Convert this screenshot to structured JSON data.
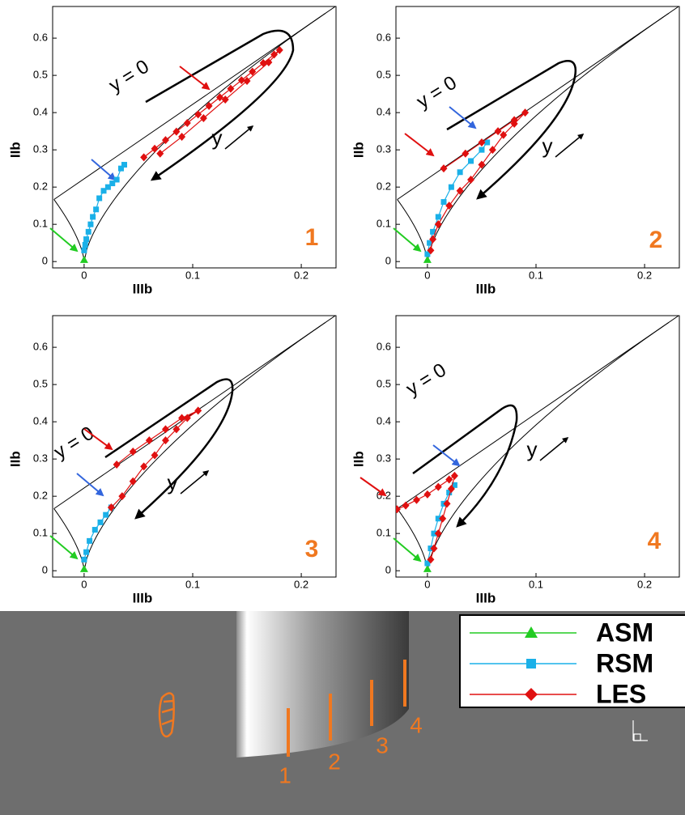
{
  "chart_data": [
    {
      "type": "scatter",
      "x_label": "IIIb",
      "y_label": "IIb",
      "label": "1",
      "annotations": [
        "y = 0",
        "y"
      ],
      "xlim": [
        -0.029,
        0.232
      ],
      "ylim": [
        -0.017,
        0.685
      ],
      "xticks": [
        0,
        0.1,
        0.2
      ],
      "yticks": [
        0,
        0.1,
        0.2,
        0.3,
        0.4,
        0.5,
        0.6
      ],
      "series": [
        {
          "name": "ASM",
          "color": "#22cc22",
          "marker": "triangle",
          "x": [
            0
          ],
          "values": [
            0.005
          ]
        },
        {
          "name": "RSM",
          "color": "#1ab0e8",
          "marker": "square",
          "x": [
            0,
            0.001,
            0.002,
            0.004,
            0.006,
            0.008,
            0.011,
            0.014,
            0.018,
            0.022,
            0.026,
            0.03,
            0.034,
            0.037
          ],
          "values": [
            0.03,
            0.045,
            0.06,
            0.08,
            0.1,
            0.12,
            0.14,
            0.17,
            0.19,
            0.2,
            0.21,
            0.22,
            0.25,
            0.26
          ]
        },
        {
          "name": "LES",
          "color": "#e01010",
          "marker": "diamond",
          "x": [
            0.055,
            0.065,
            0.075,
            0.085,
            0.095,
            0.105,
            0.115,
            0.125,
            0.135,
            0.145,
            0.155,
            0.165,
            0.175,
            0.18,
            0.17,
            0.15,
            0.13,
            0.11,
            0.09,
            0.07
          ],
          "values": [
            0.28,
            0.303,
            0.326,
            0.349,
            0.372,
            0.395,
            0.418,
            0.441,
            0.464,
            0.487,
            0.51,
            0.533,
            0.556,
            0.568,
            0.535,
            0.485,
            0.435,
            0.385,
            0.335,
            0.29
          ]
        }
      ]
    },
    {
      "type": "scatter",
      "x_label": "IIIb",
      "y_label": "IIb",
      "label": "2",
      "annotations": [
        "y = 0",
        "y"
      ],
      "xlim": [
        -0.029,
        0.232
      ],
      "ylim": [
        -0.017,
        0.685
      ],
      "xticks": [
        0,
        0.1,
        0.2
      ],
      "yticks": [
        0,
        0.1,
        0.2,
        0.3,
        0.4,
        0.5,
        0.6
      ],
      "series": [
        {
          "name": "ASM",
          "color": "#22cc22",
          "marker": "triangle",
          "x": [
            0
          ],
          "values": [
            0.005
          ]
        },
        {
          "name": "RSM",
          "color": "#1ab0e8",
          "marker": "square",
          "x": [
            0,
            0.002,
            0.005,
            0.01,
            0.015,
            0.022,
            0.03,
            0.04,
            0.05,
            0.055
          ],
          "values": [
            0.02,
            0.05,
            0.08,
            0.12,
            0.16,
            0.2,
            0.24,
            0.27,
            0.3,
            0.32
          ]
        },
        {
          "name": "LES",
          "color": "#e01010",
          "marker": "diamond",
          "x": [
            0.003,
            0.005,
            0.01,
            0.02,
            0.03,
            0.04,
            0.05,
            0.06,
            0.07,
            0.08,
            0.09,
            0.08,
            0.065,
            0.05,
            0.035,
            0.015
          ],
          "values": [
            0.03,
            0.06,
            0.1,
            0.15,
            0.19,
            0.22,
            0.26,
            0.3,
            0.34,
            0.37,
            0.4,
            0.38,
            0.35,
            0.32,
            0.29,
            0.25
          ]
        }
      ]
    },
    {
      "type": "scatter",
      "x_label": "IIIb",
      "y_label": "IIb",
      "label": "3",
      "annotations": [
        "y = 0",
        "y"
      ],
      "xlim": [
        -0.029,
        0.232
      ],
      "ylim": [
        -0.017,
        0.685
      ],
      "xticks": [
        0,
        0.1,
        0.2
      ],
      "yticks": [
        0,
        0.1,
        0.2,
        0.3,
        0.4,
        0.5,
        0.6
      ],
      "series": [
        {
          "name": "ASM",
          "color": "#22cc22",
          "marker": "triangle",
          "x": [
            0
          ],
          "values": [
            0.005
          ]
        },
        {
          "name": "RSM",
          "color": "#1ab0e8",
          "marker": "square",
          "x": [
            0,
            0.002,
            0.005,
            0.01,
            0.015,
            0.02,
            0.025
          ],
          "values": [
            0.03,
            0.05,
            0.08,
            0.11,
            0.13,
            0.15,
            0.17
          ]
        },
        {
          "name": "LES",
          "color": "#e01010",
          "marker": "diamond",
          "x": [
            0.025,
            0.035,
            0.045,
            0.055,
            0.065,
            0.075,
            0.085,
            0.095,
            0.105,
            0.09,
            0.075,
            0.06,
            0.045,
            0.03
          ],
          "values": [
            0.17,
            0.2,
            0.24,
            0.28,
            0.31,
            0.35,
            0.38,
            0.41,
            0.43,
            0.41,
            0.38,
            0.35,
            0.32,
            0.285
          ]
        }
      ]
    },
    {
      "type": "scatter",
      "x_label": "IIIb",
      "y_label": "IIb",
      "label": "4",
      "annotations": [
        "y = 0",
        "y"
      ],
      "xlim": [
        -0.029,
        0.232
      ],
      "ylim": [
        -0.017,
        0.685
      ],
      "xticks": [
        0,
        0.1,
        0.2
      ],
      "yticks": [
        0,
        0.1,
        0.2,
        0.3,
        0.4,
        0.5,
        0.6
      ],
      "series": [
        {
          "name": "ASM",
          "color": "#22cc22",
          "marker": "triangle",
          "x": [
            0
          ],
          "values": [
            0.005
          ]
        },
        {
          "name": "RSM",
          "color": "#1ab0e8",
          "marker": "square",
          "x": [
            0,
            0.003,
            0.006,
            0.01,
            0.015,
            0.02,
            0.025
          ],
          "values": [
            0.02,
            0.06,
            0.1,
            0.14,
            0.18,
            0.21,
            0.23
          ]
        },
        {
          "name": "LES",
          "color": "#e01010",
          "marker": "diamond",
          "x": [
            -0.028,
            -0.02,
            -0.01,
            0,
            0.01,
            0.02,
            0.025,
            0.022,
            0.018,
            0.014,
            0.01,
            0.006,
            0.003
          ],
          "values": [
            0.165,
            0.175,
            0.19,
            0.205,
            0.225,
            0.245,
            0.255,
            0.22,
            0.18,
            0.14,
            0.1,
            0.06,
            0.03
          ]
        }
      ]
    }
  ],
  "scene": {
    "station_labels": [
      "1",
      "2",
      "3",
      "4"
    ]
  }
}
